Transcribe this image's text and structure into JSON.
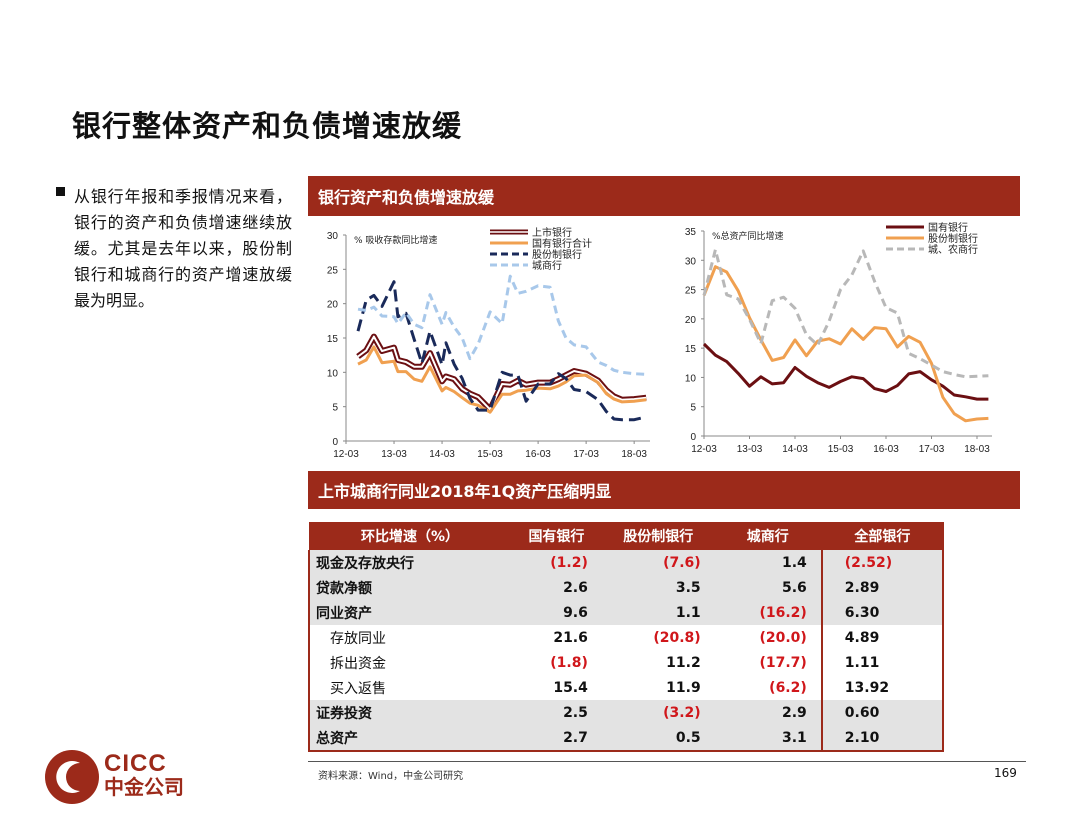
{
  "title": "银行整体资产和负债增速放缓",
  "bullet": "从银行年报和季报情况来看，银行的资产和负债增速继续放缓。尤其是去年以来，股份制银行和城商行的资产增速放缓最为明显。",
  "banner1": "银行资产和负债增速放缓",
  "banner2": "上市城商行同业2018年1Q资产压缩明显",
  "colors": {
    "brand": "#9c2a1a",
    "negative": "#d0171b",
    "listed": "#6b0f12",
    "big4": "#f0a050",
    "joint": "#1a2a5a",
    "city": "#a8c8ea",
    "gray": "#b8b8b8"
  },
  "chart_data": [
    {
      "type": "line",
      "title": "",
      "ylabel": "% 吸收存款同比增速",
      "ylim": [
        0,
        30
      ],
      "yticks": [
        "0",
        "5",
        "10",
        "15",
        "20",
        "25",
        "30"
      ],
      "x_labels": [
        "12-03",
        "13-03",
        "14-03",
        "15-03",
        "16-03",
        "17-03",
        "18-03"
      ],
      "x": [
        2012.25,
        2012.42,
        2012.58,
        2012.75,
        2013.0,
        2013.08,
        2013.25,
        2013.42,
        2013.58,
        2013.75,
        2014.0,
        2014.08,
        2014.25,
        2014.42,
        2014.58,
        2014.75,
        2015.0,
        2015.25,
        2015.42,
        2015.58,
        2015.75,
        2016.0,
        2016.25,
        2016.42,
        2016.58,
        2016.75,
        2017.0,
        2017.25,
        2017.42,
        2017.58,
        2017.75,
        2018.0,
        2018.25
      ],
      "legend": "top-right",
      "series": [
        {
          "name": "上市银行",
          "style": "double",
          "color": "#6b0f12",
          "values": [
            12.3,
            13.2,
            15.2,
            13.1,
            13.6,
            11.8,
            11.5,
            10.8,
            10.8,
            12.8,
            8.7,
            9.4,
            9.0,
            7.6,
            6.9,
            6.4,
            4.6,
            8.3,
            8.2,
            8.8,
            8.2,
            8.5,
            8.5,
            9.0,
            9.6,
            10.2,
            9.8,
            8.8,
            7.4,
            6.5,
            6.0,
            6.1,
            6.3
          ]
        },
        {
          "name": "国有银行合计",
          "style": "solid",
          "color": "#f0a050",
          "values": [
            11.2,
            11.8,
            13.7,
            11.4,
            11.6,
            10.1,
            10.1,
            9.0,
            8.7,
            10.8,
            7.3,
            7.8,
            7.2,
            6.3,
            5.5,
            5.2,
            4.2,
            6.8,
            6.8,
            7.3,
            7.4,
            7.7,
            7.6,
            8.0,
            8.6,
            9.5,
            9.6,
            8.5,
            6.9,
            6.1,
            5.7,
            5.8,
            6.0
          ]
        },
        {
          "name": "股份制银行",
          "style": "dash",
          "color": "#1a2a5a",
          "values": [
            16.0,
            20.5,
            21.2,
            19.6,
            23.2,
            18.1,
            18.6,
            14.8,
            11.3,
            16.0,
            11.1,
            14.3,
            11.2,
            9.1,
            6.2,
            4.5,
            4.5,
            10.0,
            9.6,
            9.6,
            5.8,
            8.3,
            8.3,
            9.8,
            9.1,
            7.5,
            7.2,
            6.0,
            4.3,
            3.2,
            3.1,
            3.1,
            3.5
          ]
        },
        {
          "name": "城商行",
          "style": "dash",
          "color": "#a8c8ea",
          "values": [
            19.2,
            19.0,
            19.5,
            18.2,
            18.1,
            17.1,
            18.7,
            17.0,
            16.5,
            21.3,
            17.0,
            18.7,
            16.6,
            15.0,
            12.0,
            14.1,
            18.8,
            17.1,
            24.0,
            21.5,
            21.8,
            22.6,
            22.4,
            17.5,
            15.0,
            14.0,
            13.7,
            11.5,
            11.0,
            10.3,
            10.0,
            9.8,
            9.7
          ]
        }
      ]
    },
    {
      "type": "line",
      "title": "",
      "ylabel": "%总资产同比增速",
      "ylim": [
        0,
        35
      ],
      "yticks": [
        "0",
        "5",
        "10",
        "15",
        "20",
        "25",
        "30",
        "35"
      ],
      "x_labels": [
        "12-03",
        "13-03",
        "14-03",
        "15-03",
        "16-03",
        "17-03",
        "18-03"
      ],
      "x": [
        2012.0,
        2012.25,
        2012.5,
        2012.75,
        2013.0,
        2013.25,
        2013.5,
        2013.75,
        2014.0,
        2014.25,
        2014.5,
        2014.75,
        2015.0,
        2015.25,
        2015.5,
        2015.75,
        2016.0,
        2016.25,
        2016.5,
        2016.75,
        2017.0,
        2017.25,
        2017.5,
        2017.75,
        2018.0,
        2018.25
      ],
      "legend": "top-right",
      "series": [
        {
          "name": "国有银行",
          "style": "solid",
          "color": "#6b0f12",
          "values": [
            15.7,
            13.8,
            12.7,
            10.7,
            8.5,
            10.1,
            8.9,
            9.1,
            11.7,
            10.2,
            9.1,
            8.3,
            9.3,
            10.1,
            9.8,
            8.1,
            7.6,
            8.6,
            10.6,
            11.0,
            9.6,
            8.5,
            7.0,
            6.7,
            6.3,
            6.3
          ]
        },
        {
          "name": "股份制银行",
          "style": "solid",
          "color": "#f0a050",
          "values": [
            24.0,
            28.9,
            28.0,
            24.8,
            20.2,
            16.4,
            12.9,
            13.4,
            16.4,
            13.7,
            16.2,
            16.6,
            15.7,
            18.3,
            16.5,
            18.5,
            18.3,
            15.2,
            17.0,
            16.0,
            12.4,
            6.6,
            3.8,
            2.6,
            2.9,
            3.0
          ]
        },
        {
          "name": "城、农商行",
          "style": "dash",
          "color": "#b8b8b8",
          "values": [
            24.0,
            31.8,
            24.1,
            23.4,
            19.9,
            15.8,
            23.1,
            23.7,
            21.8,
            17.3,
            15.5,
            19.6,
            25.0,
            27.5,
            31.6,
            26.4,
            21.9,
            21.0,
            14.1,
            13.2,
            12.1,
            11.0,
            10.5,
            10.1,
            10.2,
            10.3
          ]
        }
      ]
    },
    {
      "type": "table",
      "columns": [
        "环比增速（%）",
        "国有银行",
        "股份制银行",
        "城商行",
        "全部银行"
      ],
      "rows": [
        {
          "label": "现金及存放央行",
          "sub": false,
          "shaded": true,
          "cells": [
            "(1.2)",
            "(7.6)",
            "1.4",
            "(2.52)"
          ]
        },
        {
          "label": "贷款净额",
          "sub": false,
          "shaded": true,
          "cells": [
            "2.6",
            "3.5",
            "5.6",
            "2.89"
          ]
        },
        {
          "label": "同业资产",
          "sub": false,
          "shaded": true,
          "cells": [
            "9.6",
            "1.1",
            "(16.2)",
            "6.30"
          ]
        },
        {
          "label": "存放同业",
          "sub": true,
          "shaded": false,
          "cells": [
            "21.6",
            "(20.8)",
            "(20.0)",
            "4.89"
          ]
        },
        {
          "label": "拆出资金",
          "sub": true,
          "shaded": false,
          "cells": [
            "(1.8)",
            "11.2",
            "(17.7)",
            "1.11"
          ]
        },
        {
          "label": "买入返售",
          "sub": true,
          "shaded": false,
          "cells": [
            "15.4",
            "11.9",
            "(6.2)",
            "13.92"
          ]
        },
        {
          "label": "证券投资",
          "sub": false,
          "shaded": true,
          "cells": [
            "2.5",
            "(3.2)",
            "2.9",
            "0.60"
          ]
        },
        {
          "label": "总资产",
          "sub": false,
          "shaded": true,
          "cells": [
            "2.7",
            "0.5",
            "3.1",
            "2.10"
          ]
        }
      ]
    }
  ],
  "footer": {
    "source": "资料来源：Wind，中金公司研究",
    "page": "169"
  },
  "logo": {
    "en": "CICC",
    "cn": "中金公司"
  }
}
